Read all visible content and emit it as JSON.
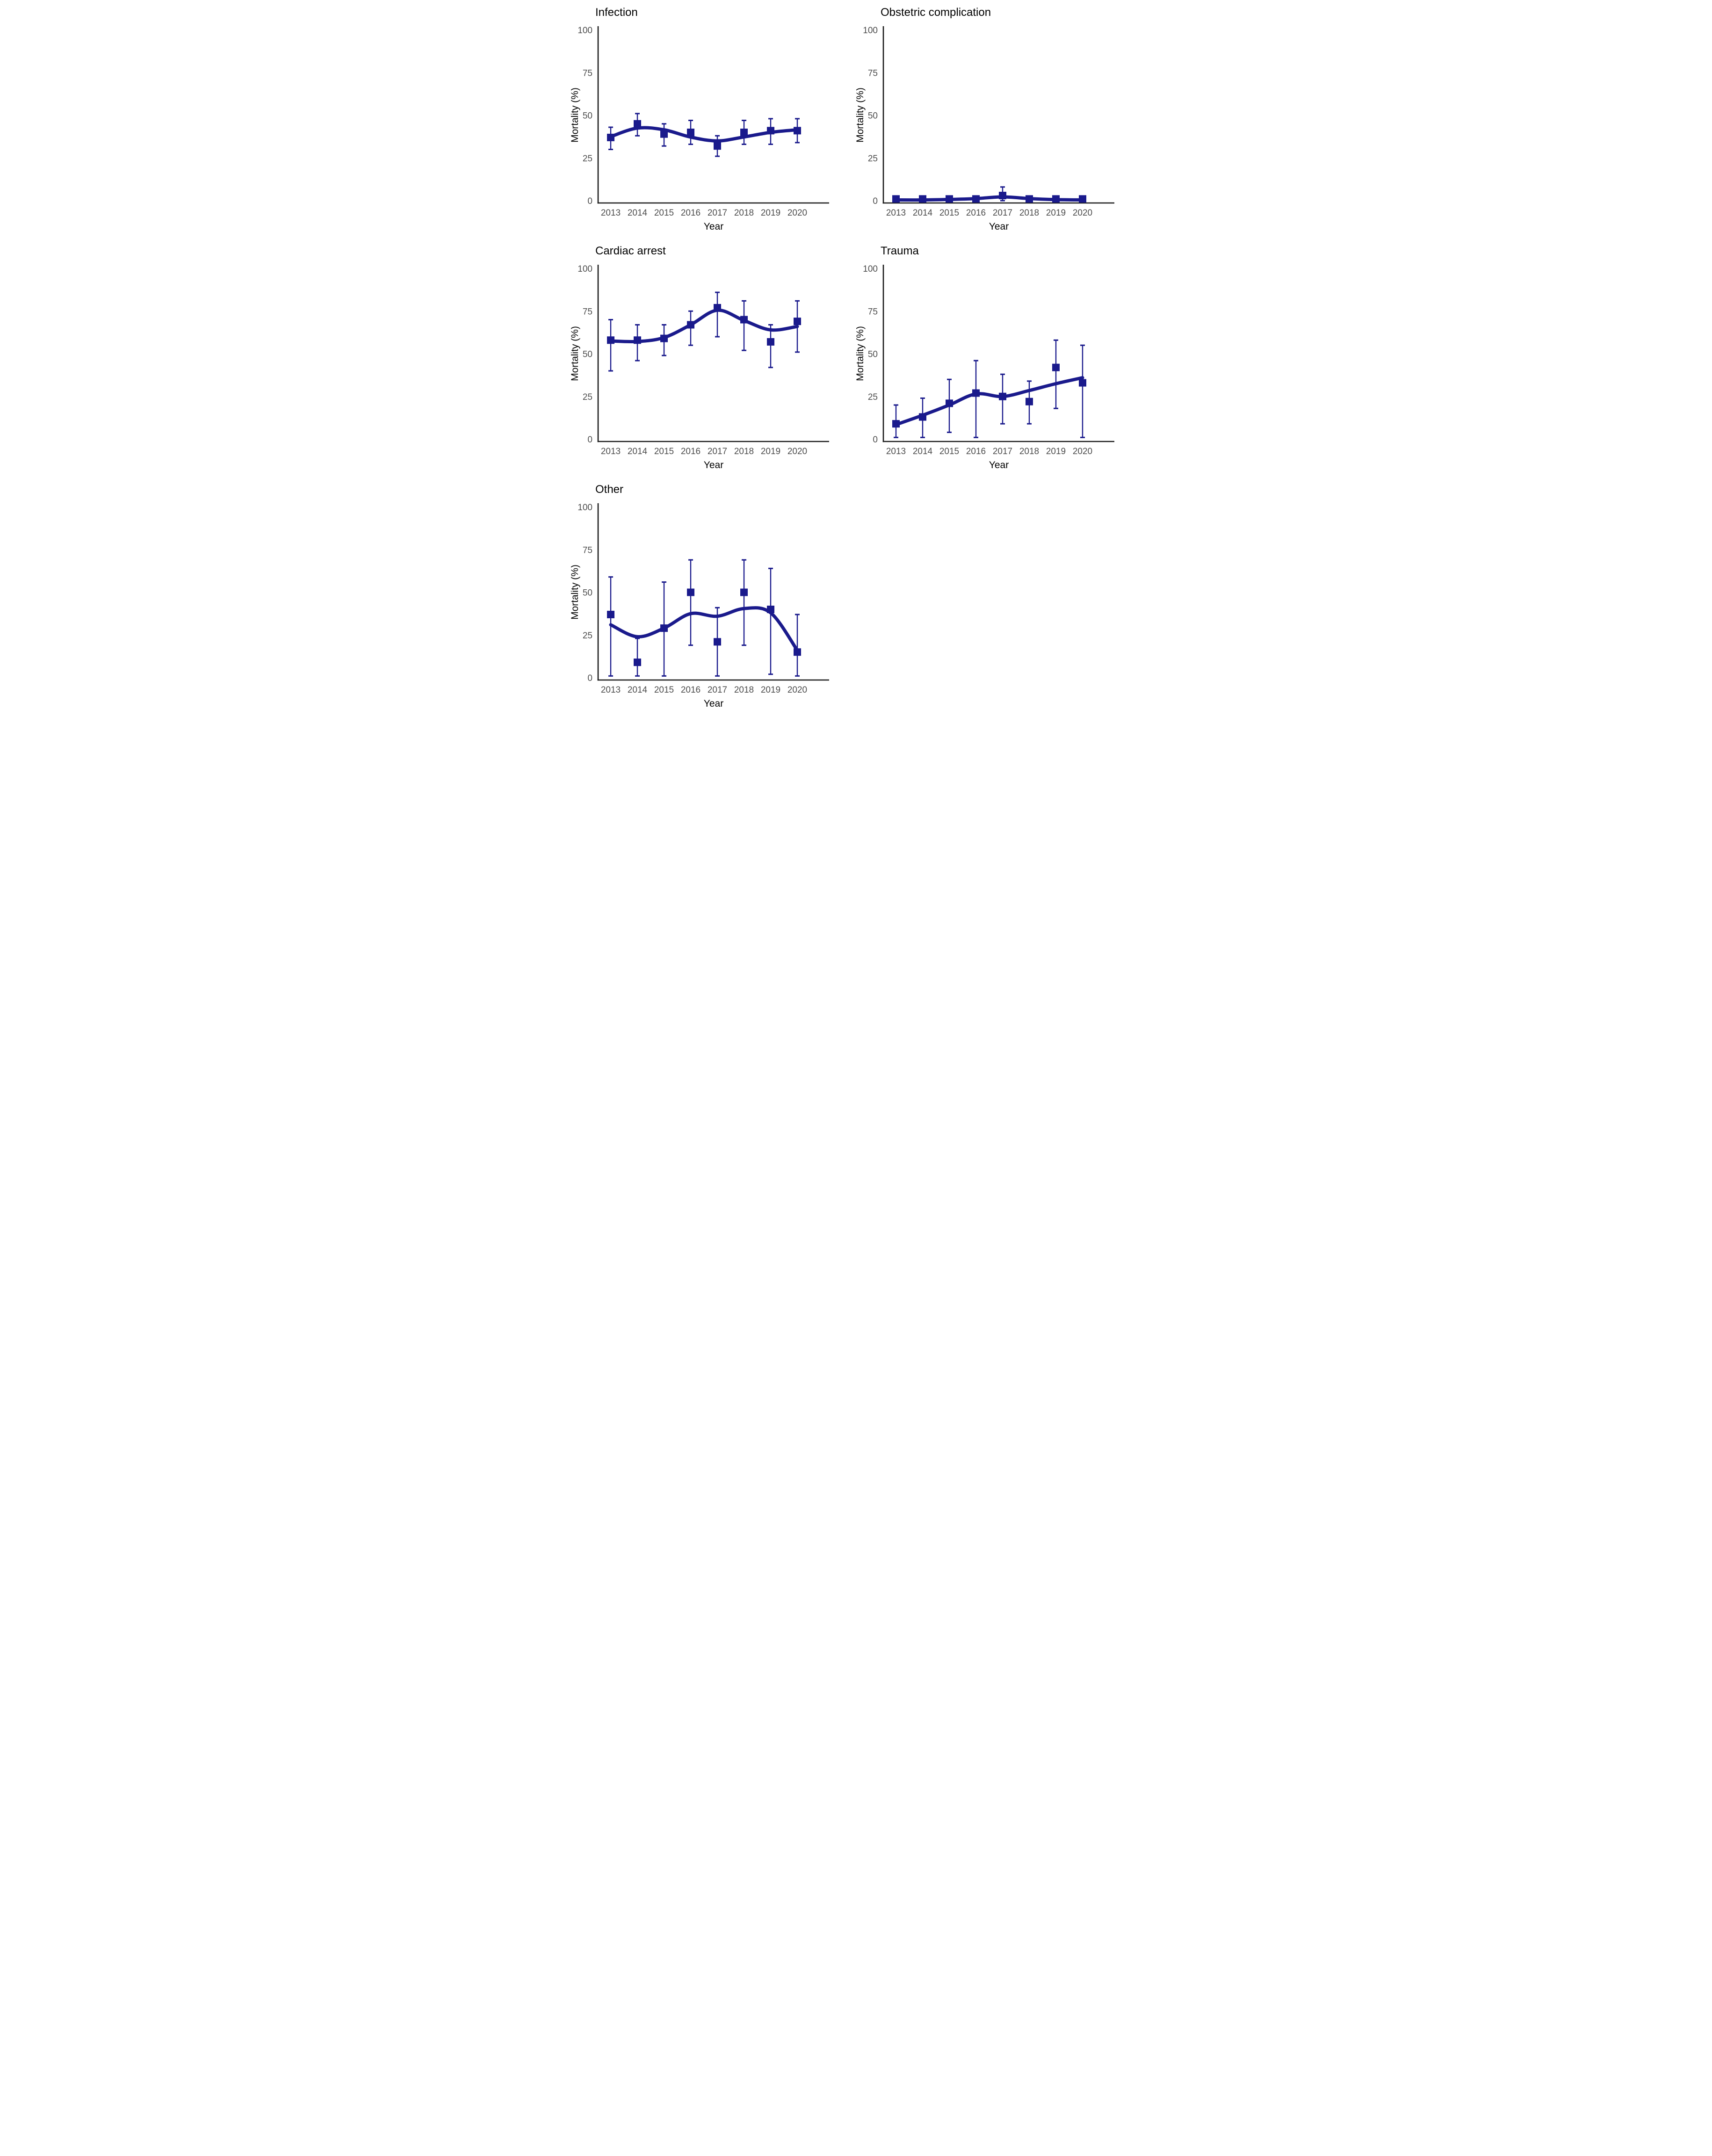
{
  "figure": {
    "background": "#ffffff",
    "ylabel": "Mortality (%)",
    "xlabel": "Year"
  },
  "style": {
    "series_color": "#1a1a8c",
    "axis_color": "#1a1a1a",
    "tick_label_color": "#4d4d4d",
    "title_color": "#000000",
    "axis_title_color": "#000000"
  },
  "chart_data": [
    {
      "type": "line",
      "title": "Infection",
      "xlabel": "Year",
      "ylabel": "Mortality (%)",
      "ylim": [
        0,
        100
      ],
      "yticks": [
        0,
        25,
        50,
        75,
        100
      ],
      "x": [
        2013,
        2014,
        2015,
        2016,
        2017,
        2018,
        2019,
        2020
      ],
      "values": [
        37,
        45,
        39,
        40,
        32,
        40,
        41,
        41
      ],
      "ci_low": [
        30,
        38,
        32,
        33,
        26,
        33,
        33,
        34
      ],
      "ci_high": [
        43,
        51,
        45,
        47,
        38,
        47,
        48,
        48
      ],
      "trend": [
        37.5,
        42.5,
        41.5,
        37.2,
        35,
        37.3,
        40,
        41.5
      ],
      "grid": false,
      "legend": "none",
      "marker": "square",
      "error_bars": "95% CI"
    },
    {
      "type": "line",
      "title": "Obstetric complication",
      "xlabel": "Year",
      "ylabel": "Mortality (%)",
      "ylim": [
        0,
        100
      ],
      "yticks": [
        0,
        25,
        50,
        75,
        100
      ],
      "x": [
        2013,
        2014,
        2015,
        2016,
        2017,
        2018,
        2019,
        2020
      ],
      "values": [
        1,
        1,
        1,
        1,
        3,
        1,
        1,
        1
      ],
      "ci_low": [
        0,
        0,
        0,
        0,
        0,
        0,
        0,
        0
      ],
      "ci_high": [
        2,
        2,
        2,
        2,
        8,
        2,
        2,
        2
      ],
      "trend": [
        0.4,
        0.4,
        0.7,
        1.2,
        2.2,
        1.2,
        0.6,
        0.4
      ],
      "grid": false,
      "legend": "none",
      "marker": "square",
      "error_bars": "95% CI"
    },
    {
      "type": "line",
      "title": "Cardiac arrest",
      "xlabel": "Year",
      "ylabel": "Mortality (%)",
      "ylim": [
        0,
        100
      ],
      "yticks": [
        0,
        25,
        50,
        75,
        100
      ],
      "x": [
        2013,
        2014,
        2015,
        2016,
        2017,
        2018,
        2019,
        2020
      ],
      "values": [
        58,
        58,
        59,
        67,
        77,
        70,
        57,
        69
      ],
      "ci_low": [
        40,
        46,
        49,
        55,
        60,
        52,
        42,
        51
      ],
      "ci_high": [
        70,
        67,
        67,
        75,
        86,
        81,
        67,
        81
      ],
      "trend": [
        57.5,
        57.2,
        59.5,
        67,
        75.5,
        69.5,
        64,
        66
      ],
      "grid": false,
      "legend": "none",
      "marker": "square",
      "error_bars": "95% CI"
    },
    {
      "type": "line",
      "title": "Trauma",
      "xlabel": "Year",
      "ylabel": "Mortality (%)",
      "ylim": [
        0,
        100
      ],
      "yticks": [
        0,
        25,
        50,
        75,
        100
      ],
      "x": [
        2013,
        2014,
        2015,
        2016,
        2017,
        2018,
        2019,
        2020
      ],
      "values": [
        9,
        13,
        21,
        27,
        25,
        22,
        42,
        33
      ],
      "ci_low": [
        1,
        1,
        4,
        1,
        9,
        9,
        18,
        1
      ],
      "ci_high": [
        20,
        24,
        35,
        46,
        38,
        34,
        58,
        55
      ],
      "trend": [
        8.5,
        14,
        20,
        26.5,
        25,
        28.5,
        32.5,
        36
      ],
      "grid": false,
      "legend": "none",
      "marker": "square",
      "error_bars": "95% CI"
    },
    {
      "type": "line",
      "title": "Other",
      "xlabel": "Year",
      "ylabel": "Mortality (%)",
      "ylim": [
        0,
        100
      ],
      "yticks": [
        0,
        25,
        50,
        75,
        100
      ],
      "x": [
        2013,
        2014,
        2015,
        2016,
        2017,
        2018,
        2019,
        2020
      ],
      "values": [
        37,
        9,
        29,
        50,
        21,
        50,
        40,
        15
      ],
      "ci_low": [
        1,
        1,
        1,
        19,
        1,
        19,
        2,
        1
      ],
      "ci_high": [
        59,
        23,
        56,
        69,
        41,
        69,
        64,
        37
      ],
      "trend": [
        31,
        24,
        29,
        37.5,
        36,
        40.5,
        38,
        16
      ],
      "grid": false,
      "legend": "none",
      "marker": "square",
      "error_bars": "95% CI"
    }
  ]
}
